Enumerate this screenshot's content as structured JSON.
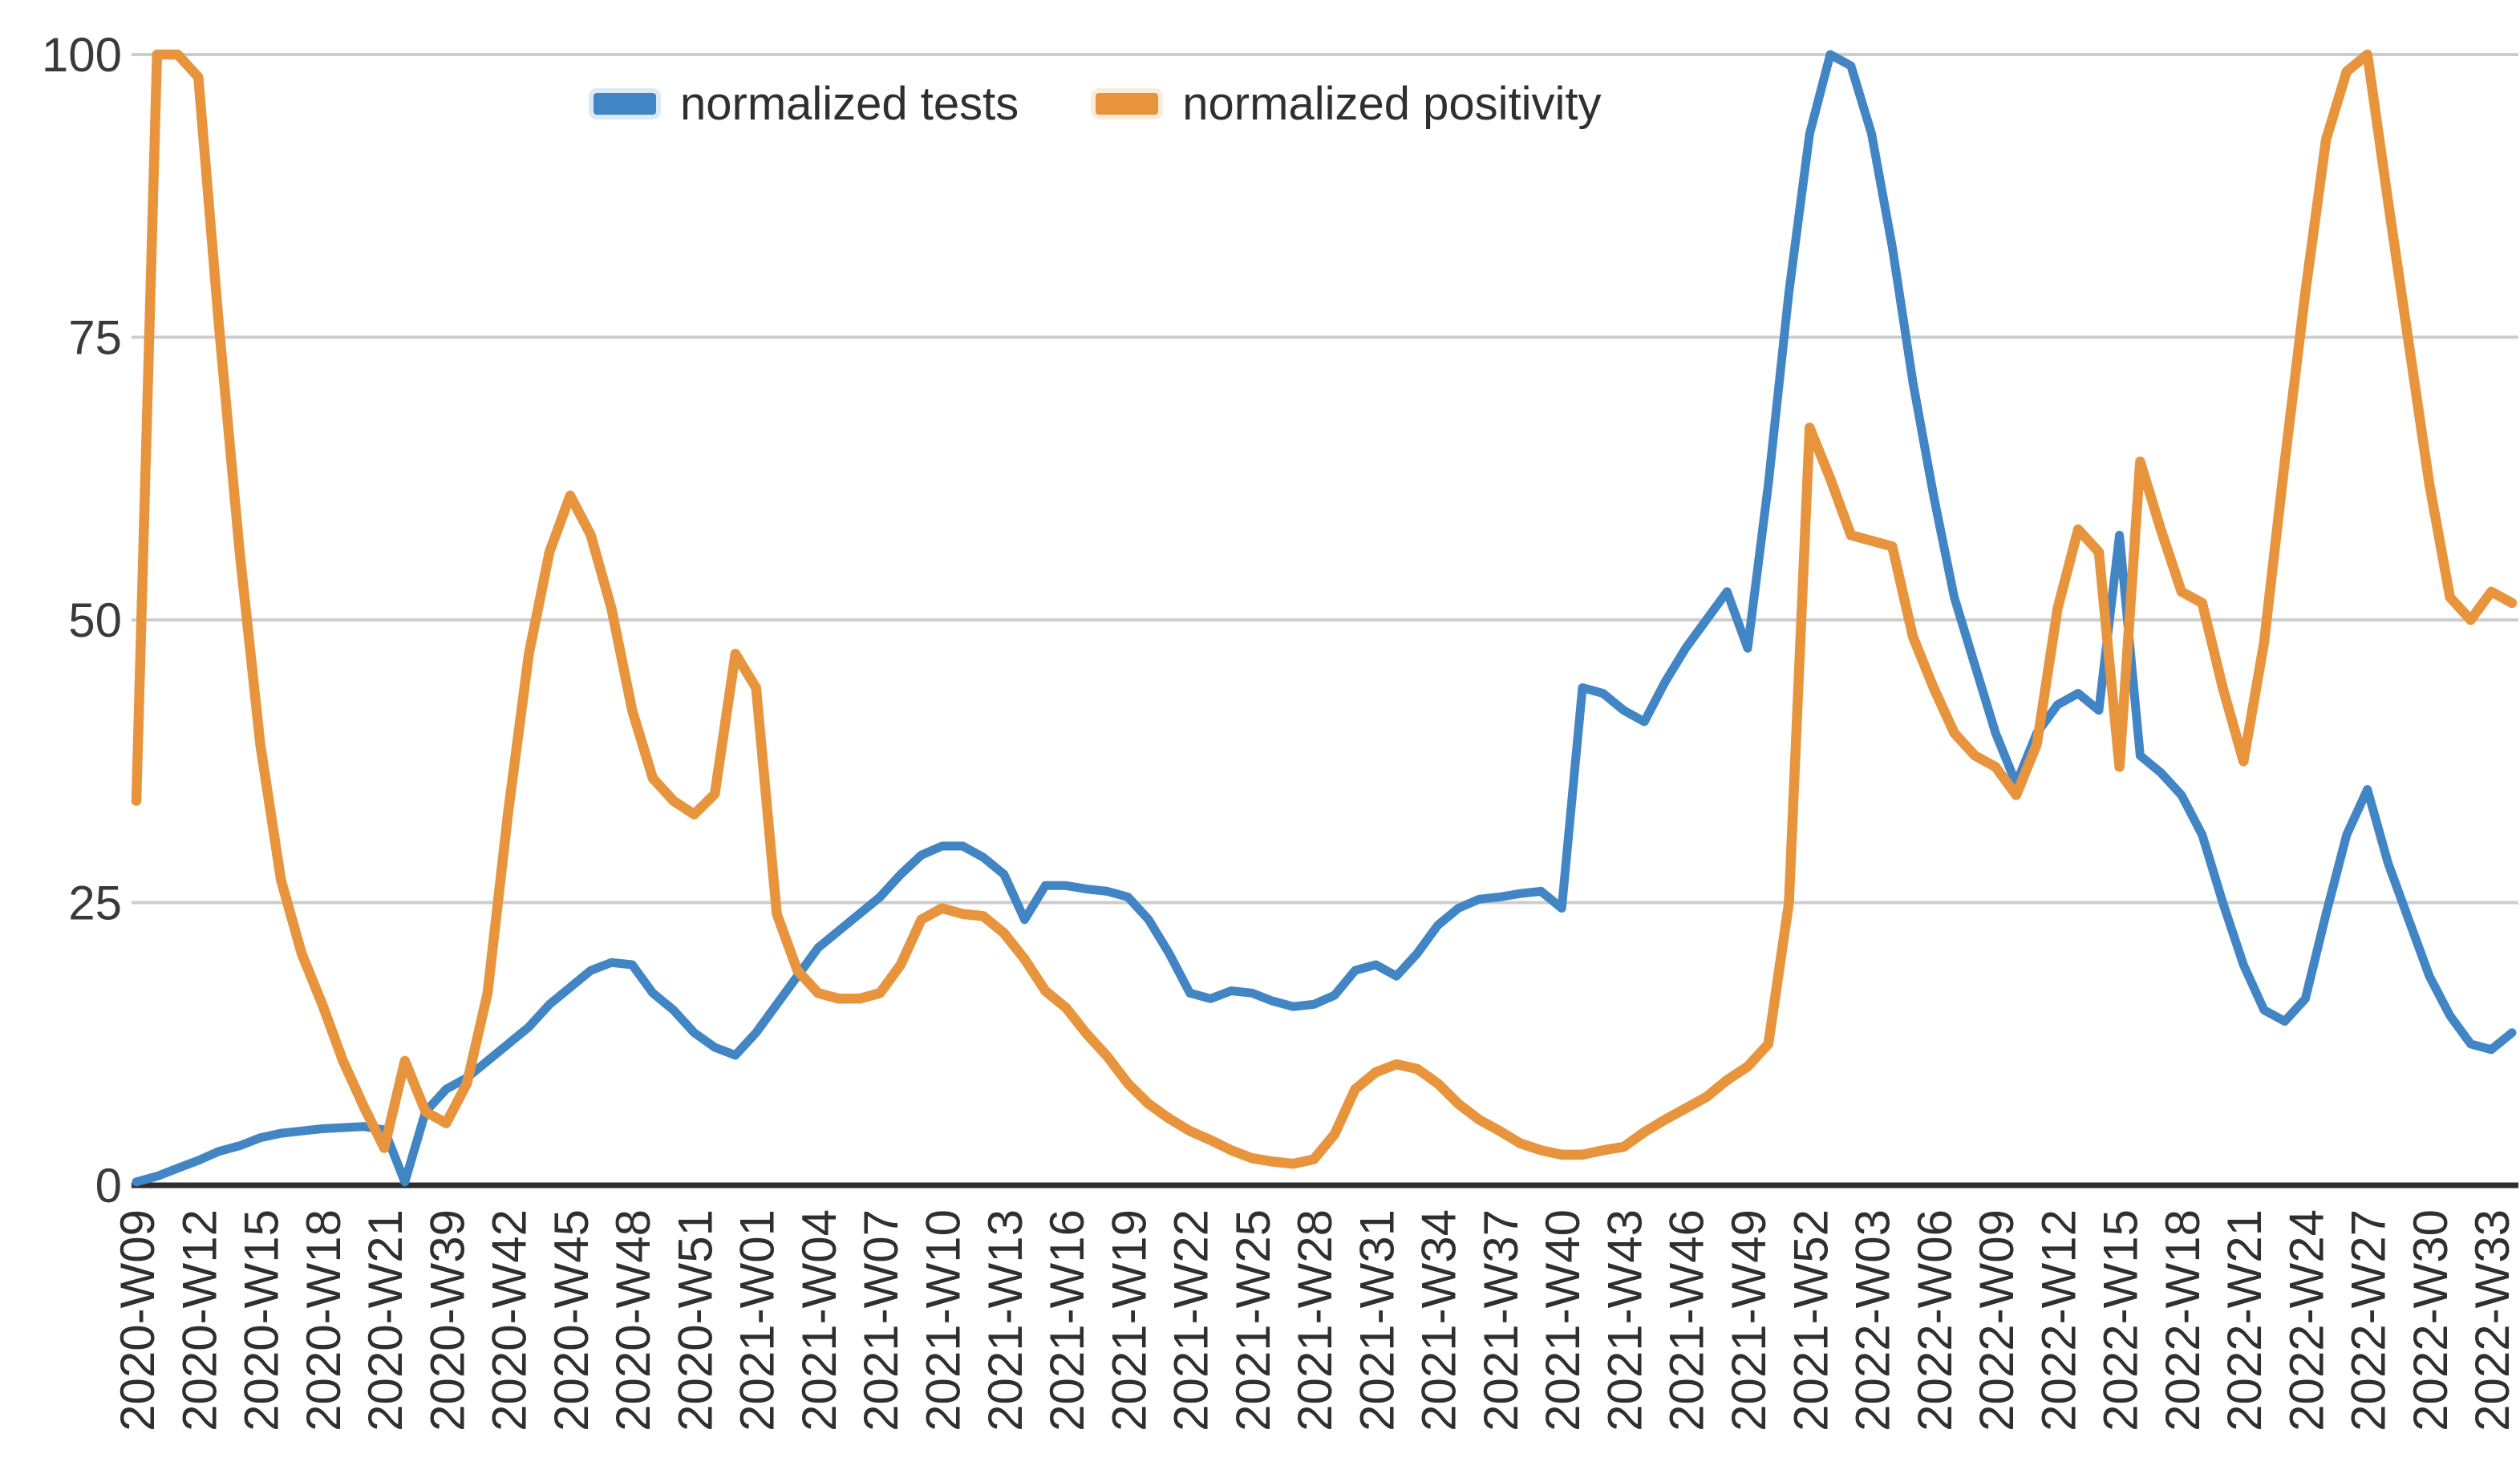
{
  "chart_data": {
    "type": "line",
    "title": "",
    "xlabel": "",
    "ylabel": "",
    "ylim": [
      0,
      100
    ],
    "yticks": [
      0,
      25,
      50,
      75,
      100
    ],
    "grid": "horizontal",
    "legend_position": "top-center",
    "x_tick_every": 3,
    "x": [
      "2020-W09",
      "2020-W10",
      "2020-W11",
      "2020-W12",
      "2020-W13",
      "2020-W14",
      "2020-W15",
      "2020-W16",
      "2020-W17",
      "2020-W18",
      "2020-W19",
      "2020-W20",
      "2020-W21",
      "2020-W22",
      "2020-W23",
      "2020-W39",
      "2020-W40",
      "2020-W41",
      "2020-W42",
      "2020-W43",
      "2020-W44",
      "2020-W45",
      "2020-W46",
      "2020-W47",
      "2020-W48",
      "2020-W49",
      "2020-W50",
      "2020-W51",
      "2020-W52",
      "2020-W53",
      "2021-W01",
      "2021-W02",
      "2021-W03",
      "2021-W04",
      "2021-W05",
      "2021-W06",
      "2021-W07",
      "2021-W08",
      "2021-W09",
      "2021-W10",
      "2021-W11",
      "2021-W12",
      "2021-W13",
      "2021-W14",
      "2021-W15",
      "2021-W16",
      "2021-W17",
      "2021-W18",
      "2021-W19",
      "2021-W20",
      "2021-W21",
      "2021-W22",
      "2021-W23",
      "2021-W24",
      "2021-W25",
      "2021-W26",
      "2021-W27",
      "2021-W28",
      "2021-W29",
      "2021-W30",
      "2021-W31",
      "2021-W32",
      "2021-W33",
      "2021-W34",
      "2021-W35",
      "2021-W36",
      "2021-W37",
      "2021-W38",
      "2021-W39",
      "2021-W40",
      "2021-W41",
      "2021-W42",
      "2021-W43",
      "2021-W44",
      "2021-W45",
      "2021-W46",
      "2021-W47",
      "2021-W48",
      "2021-W49",
      "2021-W50",
      "2021-W51",
      "2021-W52",
      "2022-W01",
      "2022-W02",
      "2022-W03",
      "2022-W04",
      "2022-W05",
      "2022-W06",
      "2022-W07",
      "2022-W08",
      "2022-W09",
      "2022-W10",
      "2022-W11",
      "2022-W12",
      "2022-W13",
      "2022-W14",
      "2022-W15",
      "2022-W16",
      "2022-W17",
      "2022-W18",
      "2022-W19",
      "2022-W20",
      "2022-W21",
      "2022-W22",
      "2022-W23",
      "2022-W24",
      "2022-W25",
      "2022-W26",
      "2022-W27",
      "2022-W28",
      "2022-W29",
      "2022-W30",
      "2022-W31",
      "2022-W32",
      "2022-W33",
      "2022-W34"
    ],
    "series": [
      {
        "name": "normalized tests",
        "color": "#4285C4",
        "values": [
          0.3,
          0.8,
          1.5,
          2.2,
          3,
          3.5,
          4.2,
          4.6,
          4.8,
          5,
          5.1,
          5.2,
          4.9,
          0.3,
          6.5,
          8.5,
          9.5,
          11,
          12.5,
          14,
          16,
          17.5,
          19,
          19.7,
          19.5,
          17,
          15.5,
          13.5,
          12.2,
          11.5,
          13.5,
          16,
          18.5,
          21,
          22.5,
          24,
          25.5,
          27.5,
          29.2,
          30,
          30,
          29,
          27.5,
          23.5,
          26.5,
          26.5,
          26.2,
          26,
          25.5,
          23.5,
          20.5,
          17,
          16.5,
          17.2,
          17,
          16.3,
          15.8,
          16,
          16.8,
          19,
          19.5,
          18.5,
          20.5,
          23,
          24.5,
          25.3,
          25.5,
          25.8,
          26,
          24.5,
          44,
          43.5,
          42,
          41,
          44.5,
          47.5,
          50,
          52.5,
          47.5,
          62,
          79,
          93,
          100,
          99,
          93,
          83,
          71,
          61,
          52,
          46,
          40,
          35.5,
          40,
          42.5,
          43.5,
          42,
          57.5,
          38,
          36.5,
          34.5,
          31,
          25,
          19.5,
          15.5,
          14.5,
          16.5,
          24,
          31,
          35,
          28.5,
          23.5,
          18.5,
          15,
          12.5,
          12,
          13.5
        ]
      },
      {
        "name": "normalized positivity",
        "color": "#E8943C",
        "values": [
          34,
          100,
          100,
          98,
          76,
          56,
          39,
          27,
          20.5,
          16,
          11,
          7,
          3.3,
          11,
          6.5,
          5.5,
          9,
          17,
          33,
          47,
          56,
          61,
          57.5,
          51,
          42,
          36,
          34,
          32.8,
          34.6,
          47,
          44,
          24,
          19,
          17,
          16.5,
          16.5,
          17,
          19.5,
          23.5,
          24.5,
          24,
          23.8,
          22.3,
          20,
          17.2,
          15.7,
          13.4,
          11.4,
          9,
          7.2,
          5.9,
          4.8,
          4,
          3.1,
          2.4,
          2.1,
          1.9,
          2.3,
          4.5,
          8.5,
          10,
          10.7,
          10.3,
          9,
          7.2,
          5.8,
          4.8,
          3.7,
          3.1,
          2.7,
          2.7,
          3.1,
          3.4,
          4.7,
          5.8,
          6.8,
          7.8,
          9.3,
          10.5,
          12.5,
          25,
          67,
          62.5,
          57.5,
          57,
          56.5,
          48.5,
          44,
          40,
          38,
          37,
          34.5,
          39,
          51,
          58,
          56,
          37,
          64,
          58,
          52.5,
          51.5,
          44,
          37.5,
          48,
          64,
          79,
          92.5,
          98.5,
          100,
          87,
          74.5,
          62,
          52,
          50,
          52.5,
          51.5
        ]
      }
    ]
  }
}
